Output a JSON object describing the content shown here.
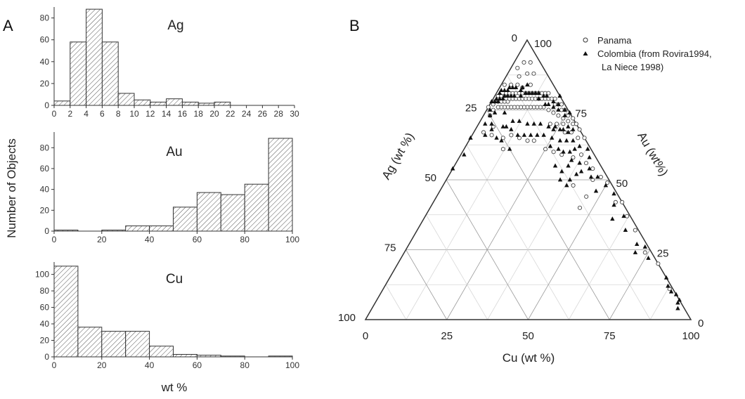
{
  "panel_labels": {
    "a": "A",
    "b": "B"
  },
  "histograms": {
    "ylabel": "Number of Objects",
    "xlabel": "wt %"
  },
  "ternary": {
    "title_bottom": "Cu (wt %)",
    "title_left": "Ag (wt %)",
    "title_right": "Au (wt%)",
    "legend": {
      "panama": "Panama",
      "colombia_line1": "Colombia (from Rovira1994,",
      "colombia_line2": "La Niece 1998)"
    }
  },
  "chart_data": [
    {
      "type": "bar",
      "title": "Ag",
      "xlim": [
        0,
        30
      ],
      "ylim": [
        0,
        90
      ],
      "xticks": [
        0,
        2,
        4,
        6,
        8,
        10,
        12,
        14,
        16,
        18,
        20,
        22,
        24,
        26,
        28,
        30
      ],
      "yticks": [
        0,
        20,
        40,
        60,
        80
      ],
      "bins": [
        [
          0,
          2,
          4
        ],
        [
          2,
          4,
          58
        ],
        [
          4,
          6,
          88
        ],
        [
          6,
          8,
          58
        ],
        [
          8,
          10,
          11
        ],
        [
          10,
          12,
          5
        ],
        [
          12,
          14,
          3
        ],
        [
          14,
          16,
          6
        ],
        [
          16,
          18,
          3
        ],
        [
          18,
          20,
          2
        ],
        [
          20,
          22,
          3
        ]
      ],
      "xlabel": "wt %",
      "ylabel": "Number of Objects"
    },
    {
      "type": "bar",
      "title": "Au",
      "xlim": [
        0,
        100
      ],
      "ylim": [
        0,
        95
      ],
      "xticks": [
        0,
        20,
        40,
        60,
        80,
        100
      ],
      "yticks": [
        0,
        20,
        40,
        60,
        80
      ],
      "bins": [
        [
          0,
          10,
          1
        ],
        [
          20,
          30,
          1
        ],
        [
          30,
          40,
          5
        ],
        [
          40,
          50,
          5
        ],
        [
          50,
          60,
          23
        ],
        [
          60,
          70,
          37
        ],
        [
          70,
          80,
          35
        ],
        [
          80,
          90,
          45
        ],
        [
          90,
          100,
          89
        ]
      ],
      "xlabel": "wt %",
      "ylabel": "Number of Objects"
    },
    {
      "type": "bar",
      "title": "Cu",
      "xlim": [
        0,
        100
      ],
      "ylim": [
        0,
        115
      ],
      "xticks": [
        0,
        20,
        40,
        60,
        80,
        100
      ],
      "yticks": [
        0,
        20,
        40,
        60,
        80,
        100
      ],
      "bins": [
        [
          0,
          10,
          110
        ],
        [
          10,
          20,
          36
        ],
        [
          20,
          30,
          31
        ],
        [
          30,
          40,
          31
        ],
        [
          40,
          50,
          13
        ],
        [
          50,
          60,
          3
        ],
        [
          60,
          70,
          2
        ],
        [
          70,
          80,
          1
        ],
        [
          90,
          100,
          1
        ]
      ],
      "xlabel": "wt %",
      "ylabel": "Number of Objects"
    },
    {
      "type": "scatter",
      "subtype": "ternary",
      "title": "",
      "axes": [
        "Cu (wt %)",
        "Ag (wt %)",
        "Au (wt%)"
      ],
      "ticks": [
        0,
        25,
        50,
        75,
        100
      ],
      "series": [
        {
          "name": "Panama",
          "marker": "open-circle",
          "points_ag_cu": [
            [
              24,
              0
            ],
            [
              22,
              1
            ],
            [
              21,
              1
            ],
            [
              20,
              2
            ],
            [
              19,
              1
            ],
            [
              19,
              3
            ],
            [
              18,
              2
            ],
            [
              18,
              4
            ],
            [
              17,
              3
            ],
            [
              17,
              5
            ],
            [
              16,
              3
            ],
            [
              16,
              5
            ],
            [
              15,
              4
            ],
            [
              15,
              6
            ],
            [
              14,
              5
            ],
            [
              14,
              7
            ],
            [
              13,
              6
            ],
            [
              13,
              8
            ],
            [
              12,
              7
            ],
            [
              12,
              9
            ],
            [
              11,
              8
            ],
            [
              11,
              10
            ],
            [
              10,
              9
            ],
            [
              10,
              11
            ],
            [
              9,
              10
            ],
            [
              9,
              12
            ],
            [
              8,
              11
            ],
            [
              8,
              13
            ],
            [
              7,
              12
            ],
            [
              7,
              14
            ],
            [
              6,
              13
            ],
            [
              6,
              15
            ],
            [
              5,
              14
            ],
            [
              5,
              16
            ],
            [
              4,
              15
            ],
            [
              4,
              17
            ],
            [
              3,
              16
            ],
            [
              3,
              18
            ],
            [
              3,
              20
            ],
            [
              2,
              19
            ],
            [
              2,
              21
            ],
            [
              2,
              23
            ],
            [
              1,
              22
            ],
            [
              1,
              24
            ],
            [
              1,
              26
            ],
            [
              1,
              29
            ],
            [
              0,
              30
            ],
            [
              0,
              28
            ],
            [
              0,
              32
            ],
            [
              0,
              35
            ],
            [
              2,
              27
            ],
            [
              3,
              25
            ],
            [
              4,
              23
            ],
            [
              5,
              21
            ],
            [
              6,
              19
            ],
            [
              7,
              17
            ],
            [
              8,
              16
            ],
            [
              9,
              15
            ],
            [
              10,
              14
            ],
            [
              11,
              13
            ],
            [
              12,
              12
            ],
            [
              13,
              11
            ],
            [
              14,
              10
            ],
            [
              15,
              9
            ],
            [
              16,
              8
            ],
            [
              17,
              7
            ],
            [
              18,
              6
            ],
            [
              19,
              5
            ],
            [
              20,
              4
            ],
            [
              21,
              3
            ],
            [
              23,
              2
            ],
            [
              6,
              24
            ],
            [
              4,
              26
            ],
            [
              5,
              28
            ],
            [
              8,
              22
            ],
            [
              3,
              30
            ],
            [
              2,
              33
            ],
            [
              4,
              37
            ],
            [
              7,
              35
            ],
            [
              10,
              31
            ],
            [
              12,
              28
            ],
            [
              14,
              25
            ],
            [
              16,
              20
            ],
            [
              18,
              18
            ],
            [
              20,
              15
            ],
            [
              22,
              12
            ],
            [
              25,
              10
            ],
            [
              27,
              12
            ],
            [
              26,
              5
            ],
            [
              28,
              6
            ],
            [
              30,
              3
            ],
            [
              25,
              2
            ],
            [
              3,
              43
            ],
            [
              5,
              45
            ],
            [
              2,
              47
            ],
            [
              4,
              40
            ],
            [
              12,
              40
            ],
            [
              14,
              46
            ],
            [
              10,
              46
            ],
            [
              1,
              50
            ],
            [
              2,
              56
            ],
            [
              0,
              58
            ],
            [
              1,
              62
            ],
            [
              1,
              67
            ],
            [
              2,
              74
            ],
            [
              0,
              80
            ],
            [
              1,
              88
            ],
            [
              8,
              2
            ],
            [
              5,
              3
            ],
            [
              3,
              5
            ],
            [
              4,
              8
            ],
            [
              6,
              6
            ],
            [
              9,
              4
            ],
            [
              7,
              9
            ],
            [
              10,
              7
            ],
            [
              11,
              5
            ],
            [
              13,
              3
            ],
            [
              15,
              1
            ]
          ]
        },
        {
          "name": "Colombia (from Rovira1994, La Niece 1998)",
          "marker": "filled-triangle",
          "points_ag_cu": [
            [
              22,
              0
            ],
            [
              21,
              1
            ],
            [
              20,
              1
            ],
            [
              20,
              2
            ],
            [
              19,
              2
            ],
            [
              18,
              3
            ],
            [
              18,
              1
            ],
            [
              17,
              3
            ],
            [
              17,
              1
            ],
            [
              16,
              2
            ],
            [
              16,
              4
            ],
            [
              15,
              3
            ],
            [
              15,
              5
            ],
            [
              14,
              3
            ],
            [
              14,
              6
            ],
            [
              13,
              4
            ],
            [
              12,
              5
            ],
            [
              12,
              8
            ],
            [
              11,
              7
            ],
            [
              10,
              9
            ],
            [
              10,
              7
            ],
            [
              9,
              10
            ],
            [
              8,
              11
            ],
            [
              8,
              8
            ],
            [
              7,
              12
            ],
            [
              7,
              14
            ],
            [
              6,
              13
            ],
            [
              6,
              17
            ],
            [
              5,
              15
            ],
            [
              5,
              18
            ],
            [
              4,
              16
            ],
            [
              4,
              20
            ],
            [
              3,
              19
            ],
            [
              3,
              22
            ],
            [
              2,
              21
            ],
            [
              2,
              25
            ],
            [
              1,
              24
            ],
            [
              0,
              20
            ],
            [
              0,
              26
            ],
            [
              24,
              1
            ],
            [
              23,
              3
            ],
            [
              25,
              2
            ],
            [
              26,
              4
            ],
            [
              27,
              5
            ],
            [
              28,
              2
            ],
            [
              27,
              8
            ],
            [
              26,
              10
            ],
            [
              30,
              4
            ],
            [
              25,
              14
            ],
            [
              22,
              9
            ],
            [
              20,
              6
            ],
            [
              19,
              10
            ],
            [
              17,
              12
            ],
            [
              15,
              15
            ],
            [
              13,
              17
            ],
            [
              11,
              19
            ],
            [
              9,
              22
            ],
            [
              7,
              24
            ],
            [
              5,
              27
            ],
            [
              3,
              28
            ],
            [
              2,
              30
            ],
            [
              4,
              32
            ],
            [
              6,
              30
            ],
            [
              8,
              28
            ],
            [
              10,
              25
            ],
            [
              12,
              22
            ],
            [
              14,
              20
            ],
            [
              16,
              18
            ],
            [
              18,
              16
            ],
            [
              20,
              14
            ],
            [
              21,
              11
            ],
            [
              23,
              8
            ],
            [
              8,
              24
            ],
            [
              6,
              26
            ],
            [
              4,
              29
            ],
            [
              10,
              29
            ],
            [
              12,
              26
            ],
            [
              9,
              31
            ],
            [
              5,
              34
            ],
            [
              7,
              33
            ],
            [
              3,
              35
            ],
            [
              1,
              38
            ],
            [
              6,
              38
            ],
            [
              8,
              35
            ],
            [
              10,
              35
            ],
            [
              12,
              38
            ],
            [
              13,
              34
            ],
            [
              14,
              31
            ],
            [
              2,
              40
            ],
            [
              4,
              42
            ],
            [
              7,
              40
            ],
            [
              9,
              39
            ],
            [
              3,
              46
            ],
            [
              5,
              44
            ],
            [
              6,
              48
            ],
            [
              2,
              50
            ],
            [
              1,
              54
            ],
            [
              3,
              56
            ],
            [
              6,
              58
            ],
            [
              14,
              38
            ],
            [
              15,
              35
            ],
            [
              2,
              61
            ],
            [
              4,
              64
            ],
            [
              3,
              70
            ],
            [
              5,
              71
            ],
            [
              1,
              73
            ],
            [
              2,
              76
            ],
            [
              0,
              85
            ],
            [
              1,
              87
            ],
            [
              1,
              89
            ],
            [
              0,
              91
            ],
            [
              0,
              93
            ],
            [
              1,
              93
            ],
            [
              2,
              94
            ],
            [
              46,
              0
            ],
            [
              40,
              1
            ],
            [
              35,
              0
            ]
          ]
        }
      ]
    }
  ]
}
